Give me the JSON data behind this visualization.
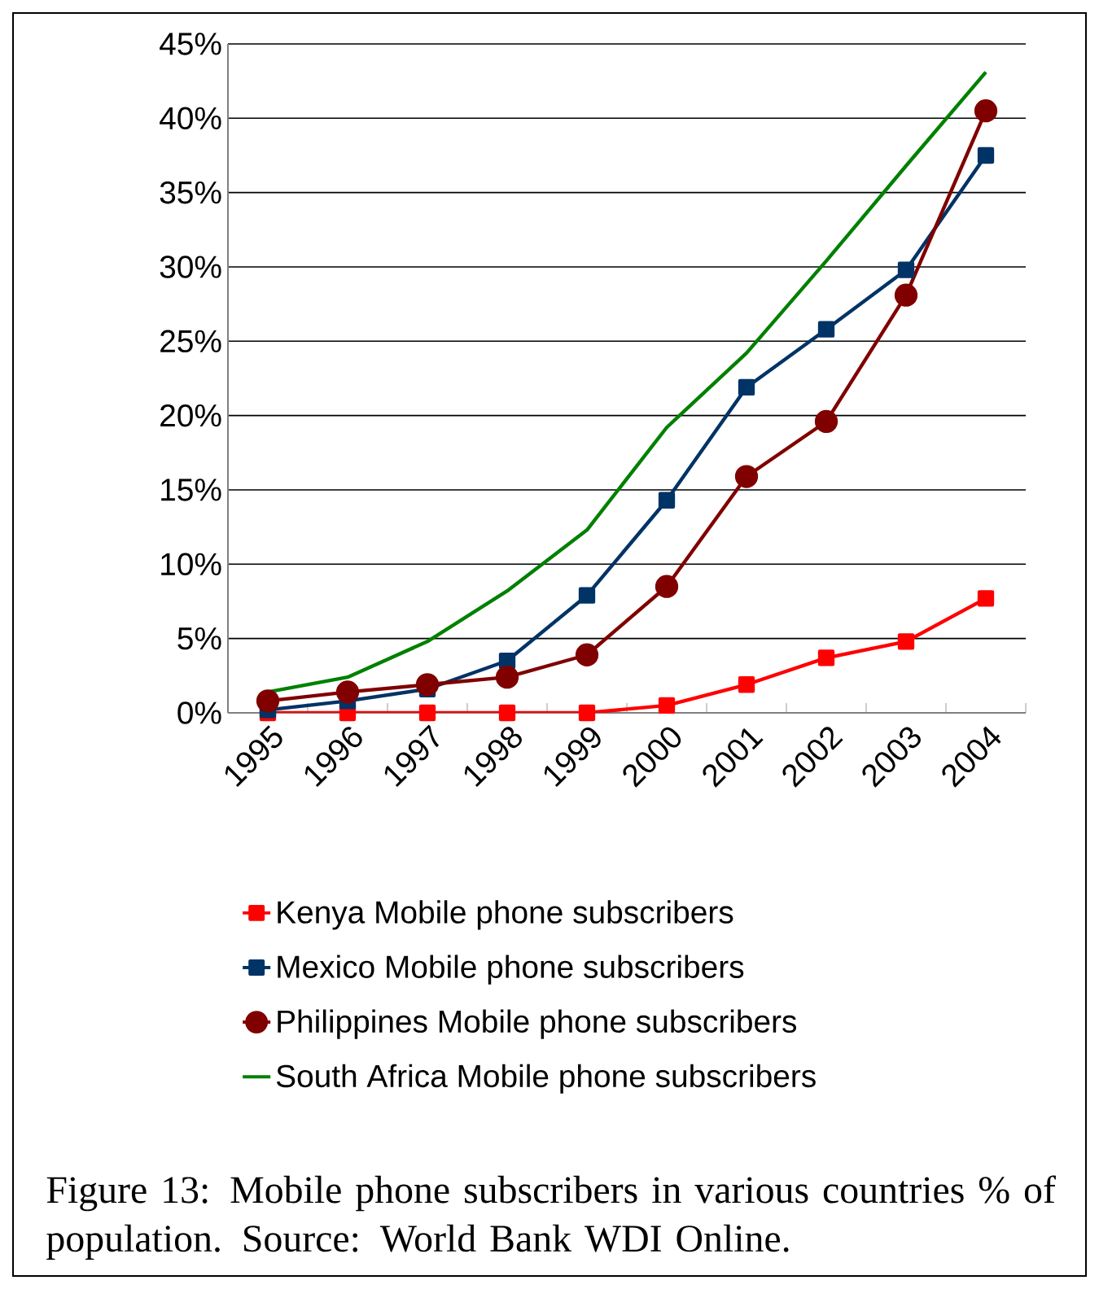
{
  "chart_data": {
    "type": "line",
    "categories": [
      "1995",
      "1996",
      "1997",
      "1998",
      "1999",
      "2000",
      "2001",
      "2002",
      "2003",
      "2004"
    ],
    "series": [
      {
        "name": "Kenya Mobile phone subscribers",
        "color": "#ff0000",
        "marker": "square",
        "values": [
          0,
          0,
          0,
          0,
          0,
          0.5,
          1.9,
          3.7,
          4.8,
          7.7
        ]
      },
      {
        "name": "Mexico Mobile phone subscribers",
        "color": "#003366",
        "marker": "square",
        "values": [
          0.2,
          0.8,
          1.6,
          3.5,
          7.9,
          14.3,
          21.9,
          25.8,
          29.8,
          37.5
        ]
      },
      {
        "name": "Philippines Mobile phone subscribers",
        "color": "#800000",
        "marker": "circle",
        "values": [
          0.8,
          1.4,
          1.9,
          2.4,
          3.9,
          8.5,
          15.9,
          19.6,
          28.1,
          40.5
        ]
      },
      {
        "name": "South Africa Mobile phone subscribers",
        "color": "#008000",
        "marker": "none",
        "values": [
          1.4,
          2.4,
          4.8,
          8.2,
          12.3,
          19.2,
          24.2,
          30.4,
          36.8,
          43.1
        ]
      }
    ],
    "ylim": [
      0,
      45
    ],
    "yticks": [
      {
        "value": 0,
        "label": "0%"
      },
      {
        "value": 5,
        "label": "5%"
      },
      {
        "value": 10,
        "label": "10%"
      },
      {
        "value": 15,
        "label": "15%"
      },
      {
        "value": 20,
        "label": "20%"
      },
      {
        "value": 25,
        "label": "25%"
      },
      {
        "value": 30,
        "label": "30%"
      },
      {
        "value": 35,
        "label": "35%"
      },
      {
        "value": 40,
        "label": "40%"
      },
      {
        "value": 45,
        "label": "45%"
      }
    ],
    "grid": "y",
    "legend": "bottom",
    "annotations": [
      "Figure 13: Mobile phone subscribers in various countries % of population. Source: World Bank WDI Online."
    ]
  }
}
